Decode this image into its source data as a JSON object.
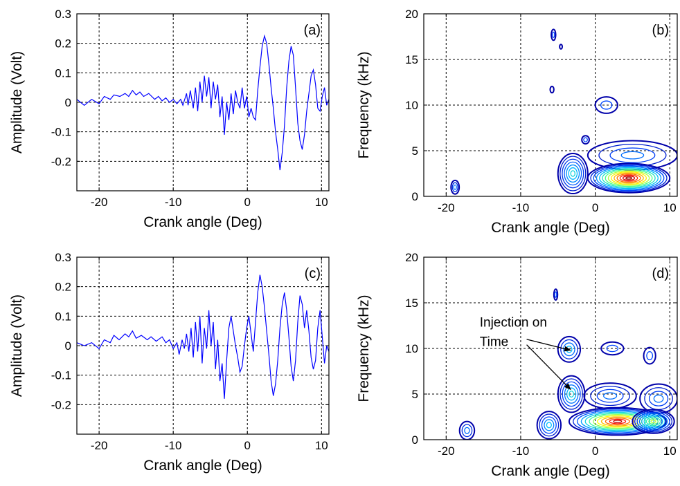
{
  "colors": {
    "signal": "#0000ff",
    "contour_ramp": [
      "#0000aa",
      "#0060ff",
      "#00c8ff",
      "#40ff80",
      "#ffff00",
      "#ff8000",
      "#ff0000",
      "#a00000"
    ]
  },
  "chart_data": [
    {
      "id": "a",
      "type": "line",
      "panel_label": "(a)",
      "xlabel": "Crank angle (Deg)",
      "ylabel": "Amplitude (Volt)",
      "xlim": [
        -23,
        11
      ],
      "ylim": [
        -0.3,
        0.3
      ],
      "xticks": [
        -20,
        -10,
        0,
        10
      ],
      "yticks": [
        -0.2,
        -0.1,
        0,
        0.1,
        0.2,
        0.3
      ],
      "xtick_labels": [
        "-20",
        "-10",
        "0",
        "10"
      ],
      "ytick_labels": [
        "-0.2",
        "-0.1",
        "0",
        "0.1",
        "0.2",
        "0.3"
      ],
      "grid": true,
      "series": [
        {
          "color": "#0000ff",
          "points": [
            [
              -23,
              0.01
            ],
            [
              -22,
              -0.01
            ],
            [
              -21,
              0.01
            ],
            [
              -20,
              -0.005
            ],
            [
              -19.3,
              0.02
            ],
            [
              -18.5,
              0.01
            ],
            [
              -18,
              0.025
            ],
            [
              -17.2,
              0.02
            ],
            [
              -16.5,
              0.03
            ],
            [
              -16,
              0.02
            ],
            [
              -15.5,
              0.04
            ],
            [
              -15,
              0.025
            ],
            [
              -14.5,
              0.035
            ],
            [
              -14,
              0.02
            ],
            [
              -13.3,
              0.03
            ],
            [
              -12.5,
              0.01
            ],
            [
              -12,
              0.02
            ],
            [
              -11.5,
              0.005
            ],
            [
              -11,
              0.015
            ],
            [
              -10.5,
              0.0
            ],
            [
              -10,
              0.01
            ],
            [
              -9.5,
              -0.005
            ],
            [
              -9,
              0.01
            ],
            [
              -8.7,
              -0.01
            ],
            [
              -8.2,
              0.03
            ],
            [
              -8,
              -0.01
            ],
            [
              -7.7,
              0.04
            ],
            [
              -7.3,
              -0.02
            ],
            [
              -7,
              0.05
            ],
            [
              -6.7,
              -0.03
            ],
            [
              -6.4,
              0.07
            ],
            [
              -6.1,
              0.0
            ],
            [
              -5.8,
              0.09
            ],
            [
              -5.5,
              0.02
            ],
            [
              -5.2,
              0.085
            ],
            [
              -4.9,
              -0.02
            ],
            [
              -4.6,
              0.07
            ],
            [
              -4.3,
              0.01
            ],
            [
              -4,
              0.06
            ],
            [
              -3.7,
              -0.05
            ],
            [
              -3.4,
              0.02
            ],
            [
              -3.1,
              -0.11
            ],
            [
              -2.8,
              0.0
            ],
            [
              -2.5,
              -0.06
            ],
            [
              -2.2,
              0.03
            ],
            [
              -1.9,
              -0.04
            ],
            [
              -1.6,
              0.04
            ],
            [
              -1.3,
              0.0
            ],
            [
              -1,
              -0.02
            ],
            [
              -0.7,
              0.05
            ],
            [
              -0.4,
              -0.02
            ],
            [
              -0.1,
              0.02
            ],
            [
              0.2,
              -0.05
            ],
            [
              0.5,
              -0.02
            ],
            [
              0.8,
              -0.05
            ],
            [
              1.1,
              -0.06
            ],
            [
              1.4,
              0.04
            ],
            [
              1.7,
              0.12
            ],
            [
              2,
              0.19
            ],
            [
              2.3,
              0.225
            ],
            [
              2.6,
              0.2
            ],
            [
              2.9,
              0.13
            ],
            [
              3.2,
              0.05
            ],
            [
              3.5,
              -0.02
            ],
            [
              3.8,
              -0.1
            ],
            [
              4.1,
              -0.16
            ],
            [
              4.4,
              -0.23
            ],
            [
              4.7,
              -0.17
            ],
            [
              5,
              -0.08
            ],
            [
              5.3,
              0.05
            ],
            [
              5.6,
              0.14
            ],
            [
              5.9,
              0.19
            ],
            [
              6.2,
              0.16
            ],
            [
              6.5,
              0.05
            ],
            [
              6.8,
              -0.07
            ],
            [
              7.1,
              -0.13
            ],
            [
              7.4,
              -0.16
            ],
            [
              7.7,
              -0.11
            ],
            [
              8,
              -0.03
            ],
            [
              8.3,
              0.03
            ],
            [
              8.6,
              0.09
            ],
            [
              8.9,
              0.11
            ],
            [
              9.2,
              0.06
            ],
            [
              9.5,
              -0.02
            ],
            [
              9.8,
              -0.03
            ],
            [
              10.1,
              0.02
            ],
            [
              10.4,
              0.05
            ],
            [
              10.7,
              -0.01
            ],
            [
              11,
              0.01
            ]
          ]
        }
      ]
    },
    {
      "id": "b",
      "type": "contour",
      "panel_label": "(b)",
      "xlabel": "Crank angle (Deg)",
      "ylabel": "Frequency (kHz)",
      "xlim": [
        -23,
        11
      ],
      "ylim": [
        0,
        20
      ],
      "xticks": [
        -20,
        -10,
        0,
        10
      ],
      "yticks": [
        0,
        5,
        10,
        15,
        20
      ],
      "xtick_labels": [
        "-20",
        "-10",
        "0",
        "10"
      ],
      "ytick_labels": [
        "0",
        "5",
        "10",
        "15",
        "20"
      ],
      "grid": true,
      "blobs": [
        {
          "x": -18.8,
          "y": 1.0,
          "rx": 0.55,
          "ry": 0.75,
          "rings": 3,
          "peak": 0.2
        },
        {
          "x": -5.6,
          "y": 17.7,
          "rx": 0.3,
          "ry": 0.6,
          "rings": 2,
          "peak": 0.15
        },
        {
          "x": -4.6,
          "y": 16.4,
          "rx": 0.18,
          "ry": 0.25,
          "rings": 1,
          "peak": 0.1
        },
        {
          "x": -5.8,
          "y": 11.7,
          "rx": 0.25,
          "ry": 0.35,
          "rings": 1,
          "peak": 0.1
        },
        {
          "x": 1.5,
          "y": 10.0,
          "rx": 1.5,
          "ry": 0.9,
          "rings": 2,
          "peak": 0.15
        },
        {
          "x": -1.3,
          "y": 6.2,
          "rx": 0.5,
          "ry": 0.45,
          "rings": 2,
          "peak": 0.15
        },
        {
          "x": -3.0,
          "y": 2.5,
          "rx": 2.0,
          "ry": 2.2,
          "rings": 7,
          "peak": 0.35
        },
        {
          "x": 5.0,
          "y": 4.5,
          "rx": 6.0,
          "ry": 1.6,
          "rings": 4,
          "peak": 0.2
        },
        {
          "x": 4.5,
          "y": 2.0,
          "rx": 5.5,
          "ry": 1.6,
          "rings": 14,
          "peak": 1.0
        }
      ]
    },
    {
      "id": "c",
      "type": "line",
      "panel_label": "(c)",
      "xlabel": "Crank angle (Deg)",
      "ylabel": "Amplitude (Volt)",
      "xlim": [
        -23,
        11
      ],
      "ylim": [
        -0.3,
        0.3
      ],
      "xticks": [
        -20,
        -10,
        0,
        10
      ],
      "yticks": [
        -0.2,
        -0.1,
        0,
        0.1,
        0.2,
        0.3
      ],
      "xtick_labels": [
        "-20",
        "-10",
        "0",
        "10"
      ],
      "ytick_labels": [
        "-0.2",
        "-0.1",
        "0",
        "0.1",
        "0.2",
        "0.3"
      ],
      "grid": true,
      "series": [
        {
          "color": "#0000ff",
          "points": [
            [
              -23,
              0.01
            ],
            [
              -22,
              0.0
            ],
            [
              -21,
              0.01
            ],
            [
              -20,
              -0.01
            ],
            [
              -19.3,
              0.02
            ],
            [
              -18.5,
              0.01
            ],
            [
              -18,
              0.035
            ],
            [
              -17.3,
              0.02
            ],
            [
              -16.5,
              0.04
            ],
            [
              -16,
              0.03
            ],
            [
              -15.5,
              0.05
            ],
            [
              -15,
              0.025
            ],
            [
              -14.3,
              0.035
            ],
            [
              -13.5,
              0.02
            ],
            [
              -13,
              0.03
            ],
            [
              -12.3,
              0.015
            ],
            [
              -11.5,
              0.03
            ],
            [
              -11,
              0.01
            ],
            [
              -10.5,
              0.02
            ],
            [
              -10,
              -0.01
            ],
            [
              -9.5,
              0.01
            ],
            [
              -9.2,
              -0.03
            ],
            [
              -8.8,
              0.02
            ],
            [
              -8.5,
              -0.01
            ],
            [
              -8.2,
              0.04
            ],
            [
              -7.9,
              -0.02
            ],
            [
              -7.6,
              0.06
            ],
            [
              -7.3,
              -0.04
            ],
            [
              -7,
              0.08
            ],
            [
              -6.7,
              -0.02
            ],
            [
              -6.4,
              0.1
            ],
            [
              -6.1,
              -0.06
            ],
            [
              -5.8,
              0.06
            ],
            [
              -5.5,
              -0.01
            ],
            [
              -5.2,
              0.12
            ],
            [
              -4.9,
              0.0
            ],
            [
              -4.6,
              0.08
            ],
            [
              -4.3,
              -0.08
            ],
            [
              -4,
              0.02
            ],
            [
              -3.7,
              -0.12
            ],
            [
              -3.4,
              -0.06
            ],
            [
              -3.1,
              -0.18
            ],
            [
              -2.8,
              -0.05
            ],
            [
              -2.5,
              0.06
            ],
            [
              -2.2,
              0.1
            ],
            [
              -1.9,
              0.05
            ],
            [
              -1.6,
              0.0
            ],
            [
              -1.3,
              -0.04
            ],
            [
              -1,
              -0.09
            ],
            [
              -0.7,
              -0.07
            ],
            [
              -0.4,
              0.0
            ],
            [
              -0.1,
              0.06
            ],
            [
              0.2,
              0.1
            ],
            [
              0.5,
              0.04
            ],
            [
              0.8,
              -0.02
            ],
            [
              1.1,
              0.08
            ],
            [
              1.4,
              0.18
            ],
            [
              1.7,
              0.24
            ],
            [
              2,
              0.2
            ],
            [
              2.3,
              0.13
            ],
            [
              2.6,
              0.05
            ],
            [
              2.9,
              -0.03
            ],
            [
              3.2,
              -0.12
            ],
            [
              3.5,
              -0.17
            ],
            [
              3.8,
              -0.13
            ],
            [
              4.1,
              -0.05
            ],
            [
              4.4,
              0.06
            ],
            [
              4.7,
              0.14
            ],
            [
              5,
              0.18
            ],
            [
              5.3,
              0.12
            ],
            [
              5.6,
              0.03
            ],
            [
              5.9,
              -0.07
            ],
            [
              6.2,
              -0.12
            ],
            [
              6.5,
              -0.05
            ],
            [
              6.8,
              0.08
            ],
            [
              7.1,
              0.17
            ],
            [
              7.4,
              0.14
            ],
            [
              7.7,
              0.06
            ],
            [
              8,
              0.12
            ],
            [
              8.3,
              0.05
            ],
            [
              8.6,
              -0.04
            ],
            [
              8.9,
              -0.08
            ],
            [
              9.2,
              -0.05
            ],
            [
              9.5,
              0.06
            ],
            [
              9.8,
              0.12
            ],
            [
              10.1,
              0.03
            ],
            [
              10.4,
              -0.06
            ],
            [
              10.7,
              0.0
            ],
            [
              11,
              -0.02
            ]
          ]
        }
      ]
    },
    {
      "id": "d",
      "type": "contour",
      "panel_label": "(d)",
      "xlabel": "Crank angle (Deg)",
      "ylabel": "Frequency (kHz)",
      "xlim": [
        -23,
        11
      ],
      "ylim": [
        0,
        20
      ],
      "xticks": [
        -20,
        -10,
        0,
        10
      ],
      "yticks": [
        0,
        5,
        10,
        15,
        20
      ],
      "xtick_labels": [
        "-20",
        "-10",
        "0",
        "10"
      ],
      "ytick_labels": [
        "0",
        "5",
        "10",
        "15",
        "20"
      ],
      "grid": true,
      "annotation": {
        "lines": [
          "Injection on",
          "Time"
        ],
        "text_x": -15.5,
        "text_y": 12.4,
        "arrows": [
          {
            "from": [
              -9.2,
              11.0
            ],
            "to": [
              -3.3,
              9.8
            ]
          },
          {
            "from": [
              -9.2,
              10.4
            ],
            "to": [
              -3.3,
              5.5
            ]
          }
        ]
      },
      "blobs": [
        {
          "x": -17.2,
          "y": 1.0,
          "rx": 1.0,
          "ry": 1.0,
          "rings": 3,
          "peak": 0.2
        },
        {
          "x": -5.3,
          "y": 15.9,
          "rx": 0.25,
          "ry": 0.6,
          "rings": 2,
          "peak": 0.15
        },
        {
          "x": -3.5,
          "y": 9.9,
          "rx": 1.5,
          "ry": 1.4,
          "rings": 4,
          "peak": 0.3
        },
        {
          "x": 2.3,
          "y": 10.0,
          "rx": 1.5,
          "ry": 0.7,
          "rings": 2,
          "peak": 0.15
        },
        {
          "x": 7.3,
          "y": 9.2,
          "rx": 0.8,
          "ry": 0.9,
          "rings": 2,
          "peak": 0.15
        },
        {
          "x": -3.2,
          "y": 5.0,
          "rx": 1.8,
          "ry": 2.0,
          "rings": 6,
          "peak": 0.35
        },
        {
          "x": 2.0,
          "y": 4.8,
          "rx": 3.5,
          "ry": 1.4,
          "rings": 4,
          "peak": 0.2
        },
        {
          "x": 8.5,
          "y": 4.5,
          "rx": 2.5,
          "ry": 1.6,
          "rings": 4,
          "peak": 0.2
        },
        {
          "x": -6.2,
          "y": 1.6,
          "rx": 1.6,
          "ry": 1.5,
          "rings": 5,
          "peak": 0.3
        },
        {
          "x": 3.0,
          "y": 2.0,
          "rx": 6.5,
          "ry": 1.5,
          "rings": 12,
          "peak": 0.95
        },
        {
          "x": 7.8,
          "y": 2.0,
          "rx": 2.8,
          "ry": 1.3,
          "rings": 9,
          "peak": 0.55
        }
      ]
    }
  ]
}
